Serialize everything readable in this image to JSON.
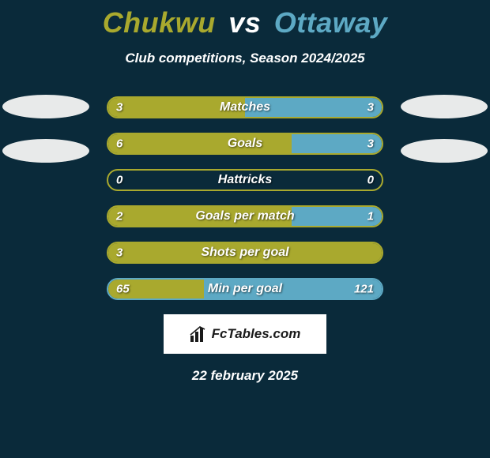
{
  "title": {
    "player1": "Chukwu",
    "vs": "vs",
    "player2": "Ottaway"
  },
  "subtitle": "Club competitions, Season 2024/2025",
  "colors": {
    "p1": "#a9a92e",
    "p2": "#5da9c4",
    "border_p1": "#a9a92e",
    "border_p2": "#5da9c4",
    "bg": "#0a2a3a"
  },
  "ellipsesLeftCount": 2,
  "ellipsesRightCount": 2,
  "bars": [
    {
      "label": "Matches",
      "left": "3",
      "right": "3",
      "leftPct": 50,
      "rightPct": 50,
      "borderColor": "#a9a92e"
    },
    {
      "label": "Goals",
      "left": "6",
      "right": "3",
      "leftPct": 67,
      "rightPct": 33,
      "borderColor": "#a9a92e"
    },
    {
      "label": "Hattricks",
      "left": "0",
      "right": "0",
      "leftPct": 0,
      "rightPct": 0,
      "borderColor": "#a9a92e"
    },
    {
      "label": "Goals per match",
      "left": "2",
      "right": "1",
      "leftPct": 67,
      "rightPct": 33,
      "borderColor": "#a9a92e"
    },
    {
      "label": "Shots per goal",
      "left": "3",
      "right": "",
      "leftPct": 100,
      "rightPct": 0,
      "borderColor": "#a9a92e"
    },
    {
      "label": "Min per goal",
      "left": "65",
      "right": "121",
      "leftPct": 35,
      "rightPct": 65,
      "borderColor": "#5da9c4"
    }
  ],
  "footer": {
    "brand": "FcTables.com"
  },
  "date": "22 february 2025"
}
